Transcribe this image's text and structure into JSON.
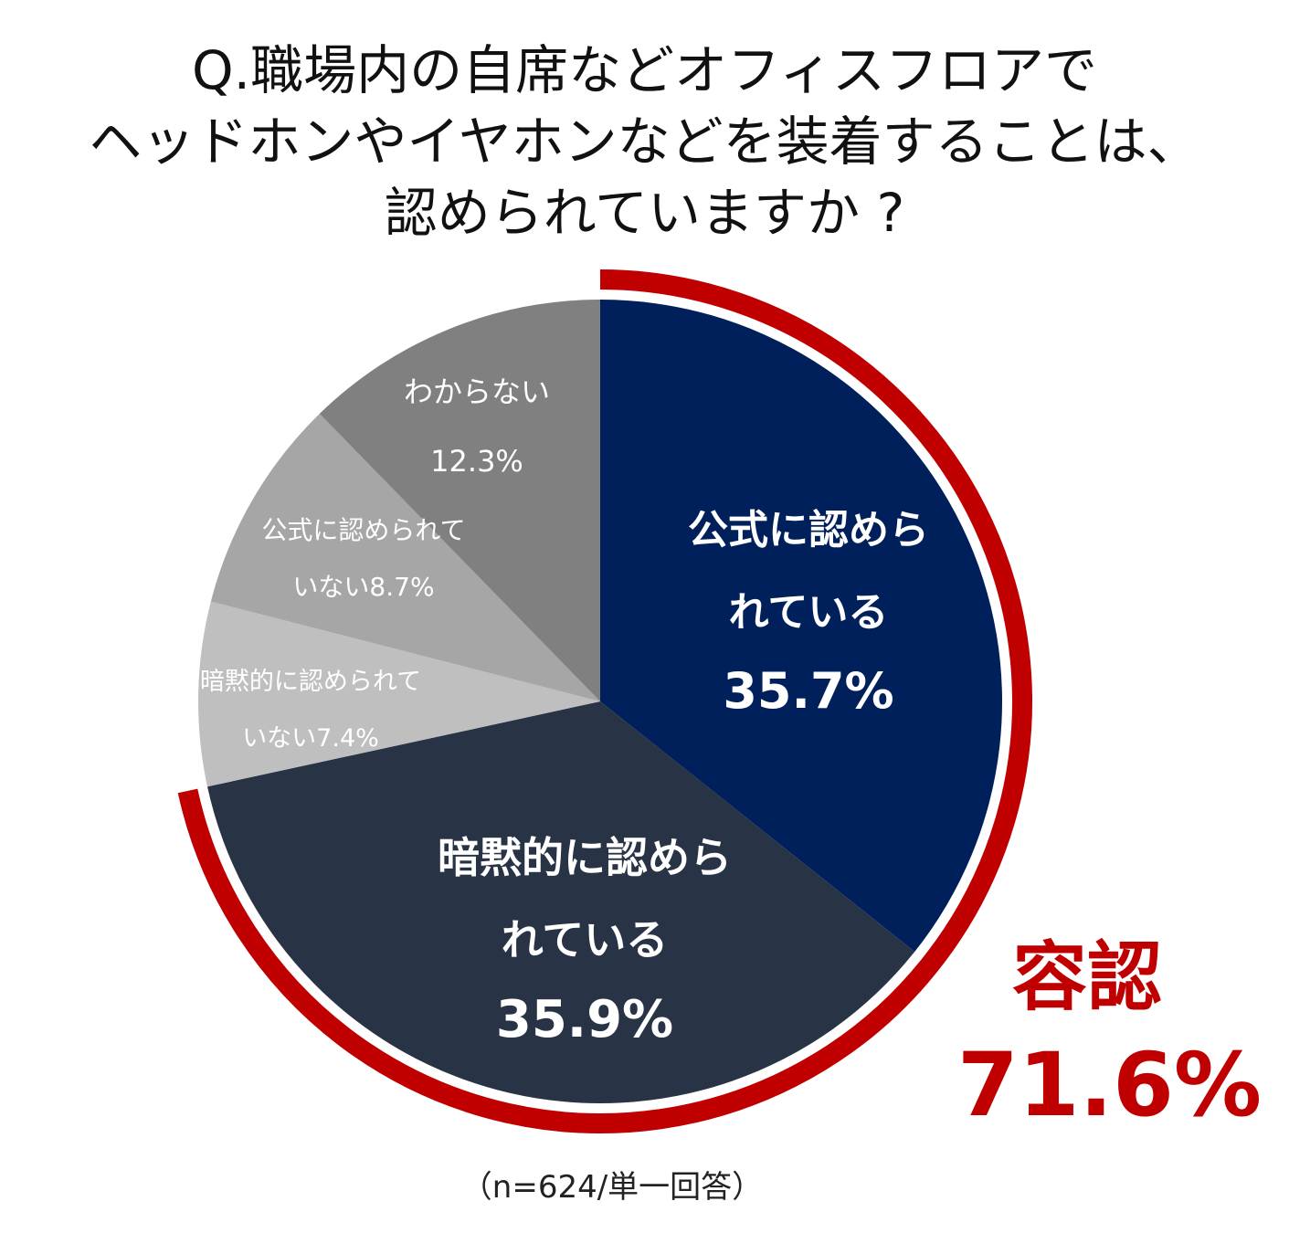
{
  "title_lines": [
    "Q.職場内の自席などオフィスフロアで",
    "ヘッドホンやイヤホンなどを装着することは、",
    "認められていますか ?"
  ],
  "note": "（n=624/単一回答）",
  "summary": {
    "label": "容認",
    "value": "71.6%",
    "color": "#c00000"
  },
  "chart_data": {
    "type": "pie",
    "title": "Q.職場内の自席などオフィスフロアでヘッドホンやイヤホンなどを装着することは、認められていますか ?",
    "slices": [
      {
        "label_lines": [
          "公式に認めら",
          "れている"
        ],
        "pct_text": "35.7%",
        "value": 35.7,
        "color": "#00205b",
        "text_color": "#ffffff",
        "emphasis": true
      },
      {
        "label_lines": [
          "暗黙的に認めら",
          "れている"
        ],
        "pct_text": "35.9%",
        "value": 35.9,
        "color": "#283346",
        "text_color": "#ffffff",
        "emphasis": true
      },
      {
        "label_lines": [
          "暗黙的に認められて",
          "いない"
        ],
        "pct_text": "7.4%",
        "value": 7.4,
        "color": "#bfbfbf",
        "text_color": "#ffffff",
        "emphasis": false
      },
      {
        "label_lines": [
          "公式に認められて",
          "いない"
        ],
        "pct_text": "8.7%",
        "value": 8.7,
        "color": "#a6a6a6",
        "text_color": "#ffffff",
        "emphasis": false
      },
      {
        "label_lines": [
          "わからない"
        ],
        "pct_text": "12.3%",
        "value": 12.3,
        "color": "#808080",
        "text_color": "#ffffff",
        "emphasis": false
      }
    ],
    "highlight_arc": {
      "slices": [
        0,
        1
      ],
      "color": "#c00000"
    }
  }
}
